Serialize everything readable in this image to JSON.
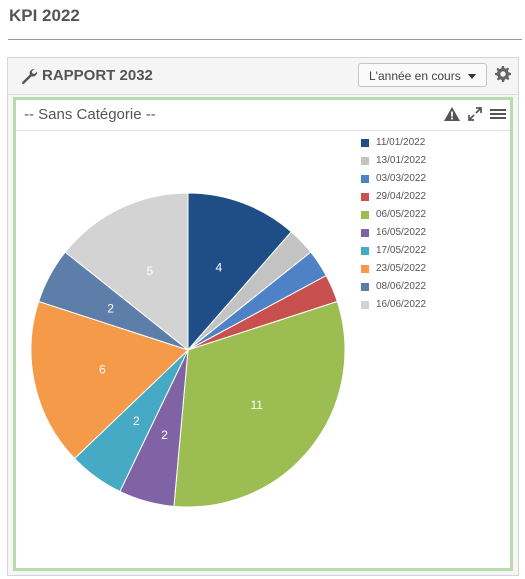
{
  "page": {
    "title": "KPI 2022"
  },
  "report": {
    "title": "RAPPORT 2032",
    "period_selected": "L'année en cours",
    "icons": {
      "header": "wrench-icon",
      "settings": "gear-icon"
    }
  },
  "widget": {
    "title": "-- Sans Catégorie --",
    "icons": [
      "warning-icon",
      "expand-icon",
      "menu-icon"
    ]
  },
  "chart_data": {
    "type": "pie",
    "categories": [
      "11/01/2022",
      "13/01/2022",
      "03/03/2022",
      "29/04/2022",
      "06/05/2022",
      "16/05/2022",
      "17/05/2022",
      "23/05/2022",
      "08/06/2022",
      "16/06/2022"
    ],
    "values": [
      4,
      1,
      1,
      1,
      11,
      2,
      2,
      6,
      2,
      5
    ],
    "labels": [
      "4",
      "",
      "",
      "",
      "11",
      "2",
      "2",
      "6",
      "2",
      "5"
    ],
    "colors": [
      "#1f4e87",
      "#c3c3c3",
      "#4e81c5",
      "#c8504e",
      "#9bbd52",
      "#7f63a5",
      "#46aac4",
      "#f59a48",
      "#5c7ea8",
      "#d3d3d3"
    ],
    "legend_position": "right"
  }
}
